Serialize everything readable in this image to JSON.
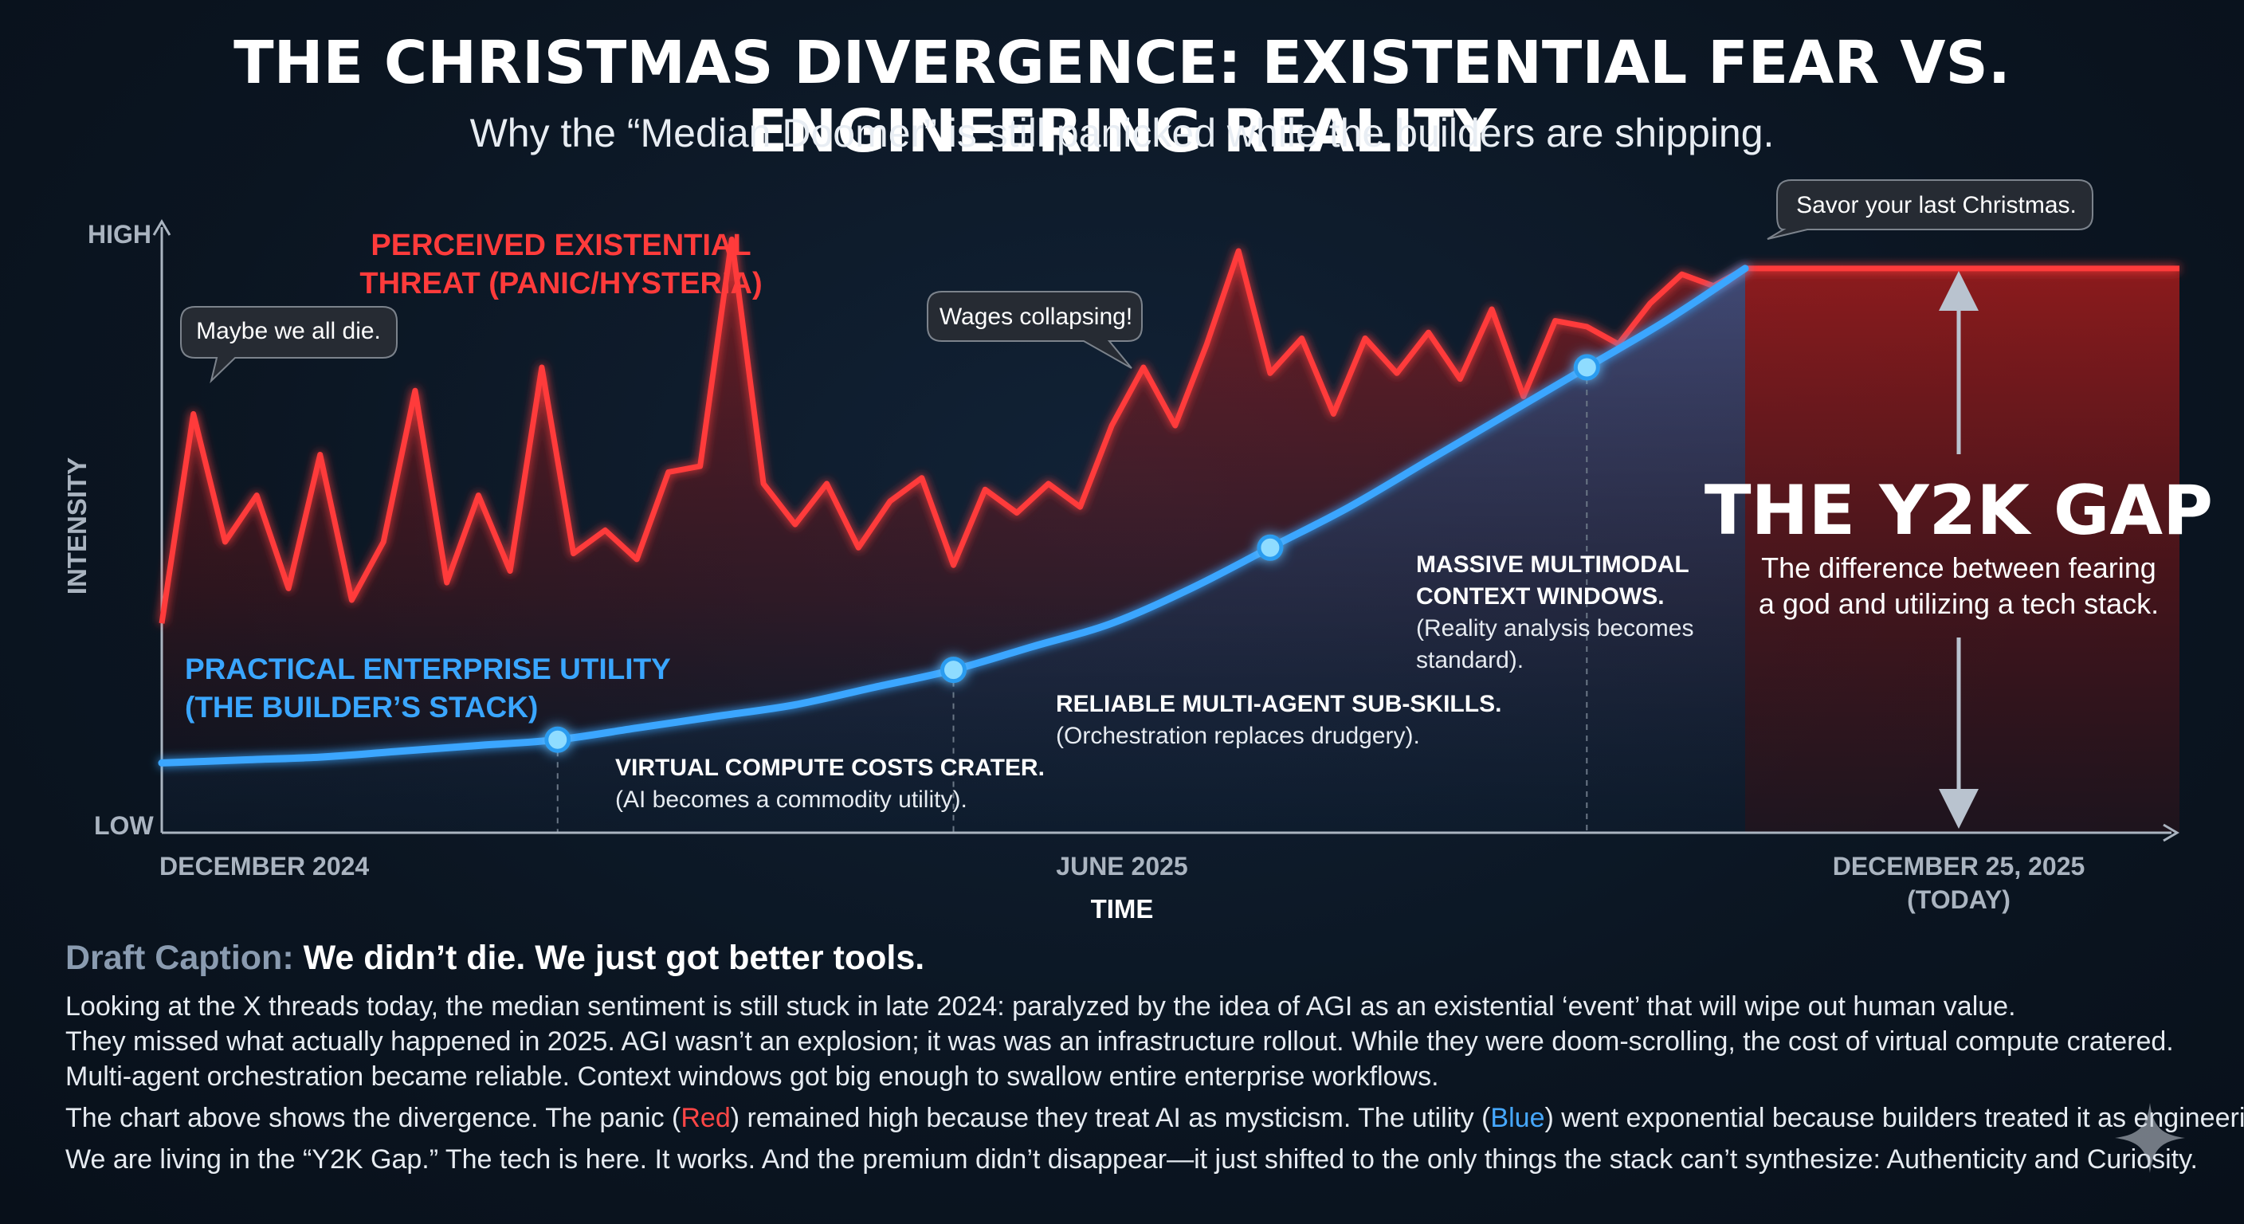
{
  "header": {
    "title": "THE CHRISTMAS DIVERGENCE: EXISTENTIAL FEAR VS. ENGINEERING REALITY",
    "subtitle": "Why the “Median Doomer” is still panicked while the builders are shipping."
  },
  "chart_data": {
    "type": "line",
    "title": "THE CHRISTMAS DIVERGENCE: EXISTENTIAL FEAR VS. ENGINEERING REALITY",
    "xlabel": "TIME",
    "ylabel": "INTENSITY",
    "y_tick_labels": {
      "high": "HIGH",
      "low": "LOW"
    },
    "x_tick_labels": [
      {
        "label": "DECEMBER 2024",
        "t": 0
      },
      {
        "label": "JUNE 2025",
        "t": 0.5
      },
      {
        "label": "DECEMBER 25, 2025",
        "sub": "(TODAY)",
        "t": 1
      }
    ],
    "xlim": [
      0,
      1.25
    ],
    "ylim": [
      0,
      1
    ],
    "grid": false,
    "colors": {
      "fear": "#ff3b3b",
      "utility": "#3aa6ff",
      "gap_fill": "#8f1a1a"
    },
    "series": [
      {
        "key": "fear",
        "name_lines": [
          "PERCEIVED EXISTENTIAL",
          "THREAT (PANIC/HYSTERIA)"
        ],
        "x": [
          0,
          0.02,
          0.04,
          0.06,
          0.08,
          0.1,
          0.12,
          0.14,
          0.16,
          0.18,
          0.2,
          0.22,
          0.24,
          0.26,
          0.28,
          0.3,
          0.32,
          0.34,
          0.36,
          0.38,
          0.4,
          0.42,
          0.44,
          0.46,
          0.48,
          0.5,
          0.52,
          0.54,
          0.56,
          0.58,
          0.6,
          0.62,
          0.64,
          0.66,
          0.68,
          0.7,
          0.72,
          0.74,
          0.76,
          0.78,
          0.8,
          0.82,
          0.84,
          0.86,
          0.88,
          0.9,
          0.92,
          0.94,
          0.96,
          0.98,
          1.0,
          1.25
        ],
        "values": [
          0.36,
          0.72,
          0.5,
          0.58,
          0.42,
          0.65,
          0.4,
          0.5,
          0.76,
          0.43,
          0.58,
          0.45,
          0.8,
          0.48,
          0.52,
          0.47,
          0.62,
          0.63,
          1.02,
          0.6,
          0.53,
          0.6,
          0.49,
          0.57,
          0.61,
          0.46,
          0.59,
          0.55,
          0.6,
          0.56,
          0.7,
          0.8,
          0.7,
          0.84,
          1.0,
          0.79,
          0.85,
          0.72,
          0.85,
          0.79,
          0.86,
          0.78,
          0.9,
          0.75,
          0.88,
          0.87,
          0.84,
          0.91,
          0.96,
          0.94,
          0.97,
          0.97
        ]
      },
      {
        "key": "utility",
        "name_lines": [
          "PRACTICAL ENTERPRISE UTILITY",
          "(THE BUILDER’S STACK)"
        ],
        "x": [
          0,
          0.05,
          0.1,
          0.15,
          0.2,
          0.25,
          0.3,
          0.35,
          0.4,
          0.45,
          0.5,
          0.55,
          0.6,
          0.65,
          0.7,
          0.75,
          0.8,
          0.85,
          0.9,
          0.95,
          1.0
        ],
        "values": [
          0.12,
          0.125,
          0.13,
          0.14,
          0.15,
          0.16,
          0.18,
          0.2,
          0.22,
          0.25,
          0.28,
          0.32,
          0.36,
          0.42,
          0.49,
          0.56,
          0.64,
          0.72,
          0.8,
          0.88,
          0.97
        ]
      }
    ],
    "milestones": [
      {
        "t": 0.25,
        "title": "VIRTUAL COMPUTE COSTS CRATER.",
        "desc_lines": [
          "(AI becomes a commodity utility)."
        ]
      },
      {
        "t": 0.5,
        "title": "RELIABLE MULTI-AGENT SUB-SKILLS.",
        "desc_lines": [
          "(Orchestration replaces drudgery)."
        ]
      },
      {
        "t": 0.7,
        "title_lines": [
          "MASSIVE MULTIMODAL",
          "CONTEXT WINDOWS."
        ],
        "desc_lines": [
          "(Reality analysis becomes",
          "standard)."
        ]
      },
      {
        "t": 0.9,
        "title": "",
        "desc_lines": []
      }
    ],
    "speech_bubbles": [
      {
        "text": "Maybe we all die."
      },
      {
        "text": "Wages collapsing!"
      },
      {
        "text": "Savor your last Christmas."
      }
    ],
    "gap": {
      "title": "THE Y2K GAP",
      "desc_lines": [
        "The difference between fearing",
        "a god and utilizing a tech stack."
      ]
    }
  },
  "caption": {
    "prefix": "Draft Caption:",
    "title": "We didn’t die. We just got better tools.",
    "lines": [
      "Looking at the X threads today, the median sentiment is still stuck in late 2024: paralyzed by the idea of AGI as an existential ‘event’ that will wipe out human value.",
      "They missed what actually happened in 2025. AGI wasn’t an explosion; it was was an infrastructure rollout. While they were doom-scrolling, the cost of virtual compute cratered.",
      "Multi-agent orchestration became reliable. Context windows got big enough to swallow entire enterprise workflows."
    ],
    "line4": {
      "a": "The chart above shows the divergence. The panic (",
      "red": "Red",
      "b": ") remained high because they treat AI as mysticism. The utility (",
      "blue": "Blue",
      "c": ") went exponential because builders treated it as engineering."
    },
    "line5": "We are living in the “Y2K Gap.” The tech is here. It works. And the premium didn’t disappear—it just shifted to the only things the stack can’t synthesize: Authenticity and Curiosity."
  }
}
